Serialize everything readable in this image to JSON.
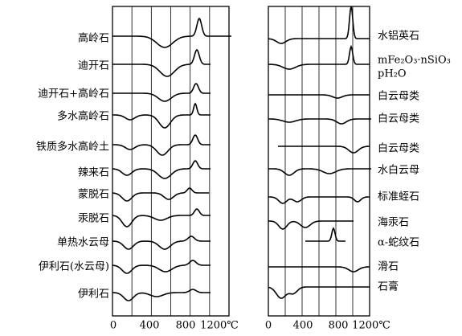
{
  "left_panel": {
    "labels": [
      "高岭石",
      "迪开石",
      "迪开石+高岭石",
      "多水高岭石",
      "铁质多水高岭土",
      "辣来石",
      "蒙脱石",
      "汞脱石",
      "单热水云母",
      "伊利石(水云母)",
      "伊利石"
    ],
    "axis_labels": [
      "0",
      "400",
      "800",
      "1200℃"
    ]
  },
  "right_panel": {
    "labels": [
      "水铝英石",
      "mFe₂O₃·nSiO₃",
      "pH₂O",
      "白云母类",
      "白云母类",
      "白云母类",
      "水白云母",
      "标准蛭石",
      "海汞石",
      "α-蛇纹石",
      "滑石",
      "石膏"
    ],
    "axis_labels": [
      "0",
      "400",
      "800",
      "1200℃"
    ]
  }
}
